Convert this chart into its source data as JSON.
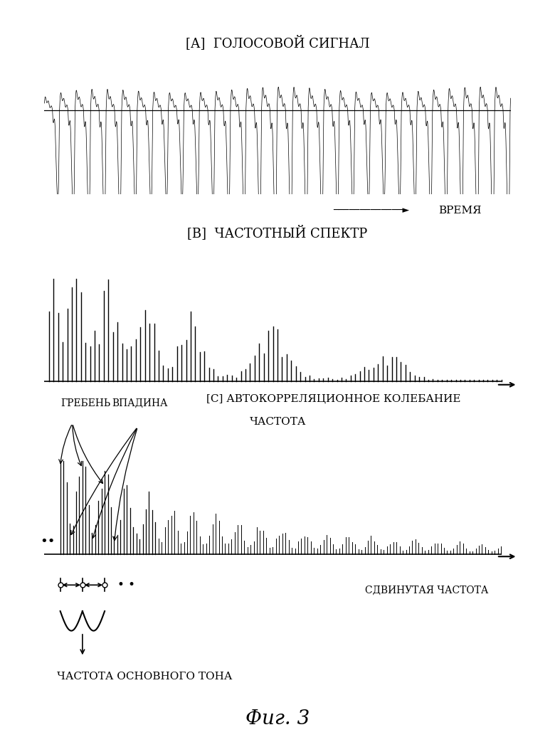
{
  "title_a": "[А]  ГОЛОСОВОЙ СИГНАЛ",
  "title_b": "[В]  ЧАСТОТНЫЙ СПЕКТР",
  "title_c": "[С] АВТОКОРРЕЛЯЦИОННОЕ КОЛЕБАНИЕ",
  "label_time": "ВРЕМЯ",
  "label_freq": "ЧАСТОТА",
  "label_shifted": "СДВИНУТАЯ ЧАСТОТА",
  "label_greb": "ГРЕБЕНЬ",
  "label_vpad": "ВПАДИНА",
  "label_fund": "ЧАСТОТА ОСНОВНОГО ТОНА",
  "label_fig": "Фиг. 3",
  "bg_color": "#ffffff",
  "line_color": "#000000"
}
